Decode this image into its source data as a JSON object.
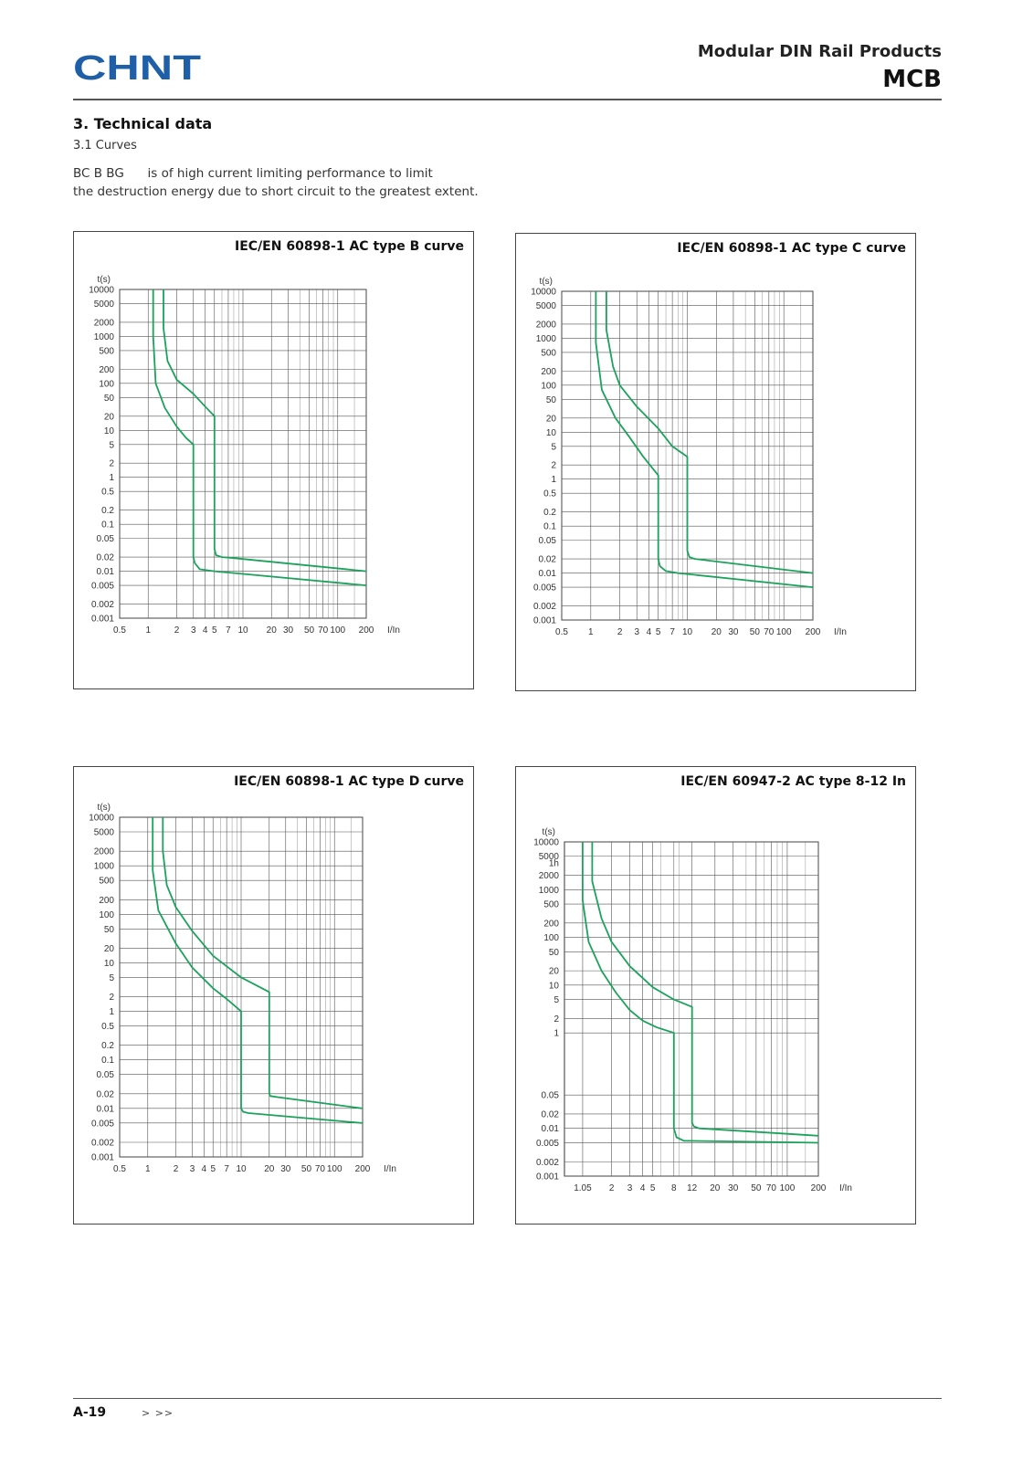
{
  "header": {
    "brand": "CHNT",
    "doc_family": "Modular DIN Rail Products",
    "doc_code": "MCB",
    "brand_color": "#1e5fa8"
  },
  "section": {
    "title": "3. Technical data",
    "subtitle": "3.1 Curves",
    "intro_models": "BC  B  BG",
    "intro_line1": "is of high current limiting performance  to limit",
    "intro_line2": "the destruction energy due to short circuit  to the greatest extent."
  },
  "chart_data": [
    {
      "type": "line",
      "title": "IEC/EN 60898-1 AC type B curve",
      "ylabel": "t(s)",
      "xlabel": "I/In",
      "x_scale": "log",
      "y_scale": "log",
      "xlim": [
        0.5,
        200
      ],
      "ylim": [
        0.001,
        10000
      ],
      "x_ticks": [
        0.5,
        1,
        2,
        3,
        4,
        5,
        7,
        10,
        20,
        30,
        50,
        70,
        100,
        200
      ],
      "y_ticks": [
        10000,
        5000,
        2000,
        1000,
        500,
        200,
        100,
        50,
        20,
        10,
        5,
        2,
        1,
        0.5,
        0.2,
        0.1,
        0.05,
        0.02,
        0.01,
        0.005,
        0.002,
        0.001
      ],
      "grid": true,
      "line_color": "#1aa35a",
      "series": [
        {
          "x": [
            1.13,
            1.13,
            1.2,
            1.5,
            2,
            2.5,
            3,
            3,
            3.1,
            3.5,
            5,
            200
          ],
          "y": [
            10000,
            1000,
            100,
            30,
            12,
            7,
            5,
            0.02,
            0.015,
            0.011,
            0.01,
            0.005
          ]
        },
        {
          "x": [
            1.45,
            1.45,
            1.6,
            2,
            3,
            4,
            5,
            5,
            5.2,
            6,
            8,
            200
          ],
          "y": [
            10000,
            1500,
            300,
            120,
            60,
            32,
            20,
            0.03,
            0.022,
            0.02,
            0.019,
            0.01
          ]
        }
      ]
    },
    {
      "type": "line",
      "title": "IEC/EN 60898-1 AC type C curve",
      "ylabel": "t(s)",
      "xlabel": "I/In",
      "x_scale": "log",
      "y_scale": "log",
      "xlim": [
        0.5,
        200
      ],
      "ylim": [
        0.001,
        10000
      ],
      "x_ticks": [
        0.5,
        1,
        2,
        3,
        4,
        5,
        7,
        10,
        20,
        30,
        50,
        70,
        100,
        200
      ],
      "y_ticks": [
        10000,
        5000,
        2000,
        1000,
        500,
        200,
        100,
        50,
        20,
        10,
        5,
        2,
        1,
        0.5,
        0.2,
        0.1,
        0.05,
        0.02,
        0.01,
        0.005,
        0.002,
        0.001
      ],
      "grid": true,
      "line_color": "#1aa35a",
      "series": [
        {
          "x": [
            1.13,
            1.13,
            1.3,
            1.8,
            2.5,
            3.5,
            5,
            5,
            5.2,
            6,
            8,
            200
          ],
          "y": [
            10000,
            800,
            80,
            20,
            8,
            3,
            1.2,
            0.02,
            0.014,
            0.011,
            0.01,
            0.005
          ]
        },
        {
          "x": [
            1.45,
            1.45,
            1.7,
            2,
            3,
            5,
            7,
            10,
            10,
            10.5,
            12,
            200
          ],
          "y": [
            10000,
            1500,
            250,
            100,
            35,
            12,
            5,
            3,
            0.03,
            0.022,
            0.02,
            0.01
          ]
        }
      ]
    },
    {
      "type": "line",
      "title": "IEC/EN 60898-1 AC type D curve",
      "ylabel": "t(s)",
      "xlabel": "I/In",
      "x_scale": "log",
      "y_scale": "log",
      "xlim": [
        0.5,
        200
      ],
      "ylim": [
        0.001,
        10000
      ],
      "x_ticks": [
        0.5,
        1,
        2,
        3,
        4,
        5,
        7,
        10,
        20,
        30,
        50,
        70,
        100,
        200
      ],
      "y_ticks": [
        10000,
        5000,
        2000,
        1000,
        500,
        200,
        100,
        50,
        20,
        10,
        5,
        2,
        1,
        0.5,
        0.2,
        0.1,
        0.05,
        0.02,
        0.01,
        0.005,
        0.002,
        0.001
      ],
      "grid": true,
      "line_color": "#1aa35a",
      "series": [
        {
          "x": [
            1.13,
            1.13,
            1.3,
            2,
            3,
            5,
            7,
            10,
            10,
            10.5,
            12,
            200
          ],
          "y": [
            10000,
            800,
            120,
            25,
            8,
            3,
            1.8,
            1,
            0.01,
            0.0085,
            0.008,
            0.005
          ]
        },
        {
          "x": [
            1.45,
            1.45,
            1.6,
            2,
            3,
            5,
            10,
            20,
            20,
            20.5,
            25,
            200
          ],
          "y": [
            10000,
            2000,
            400,
            140,
            45,
            14,
            5,
            2.5,
            0.02,
            0.018,
            0.017,
            0.01
          ]
        }
      ]
    },
    {
      "type": "line",
      "title": "IEC/EN 60947-2 AC type 8-12 In",
      "ylabel": "t(s)",
      "xlabel": "I/In",
      "x_scale": "log",
      "y_scale": "log",
      "xlim": [
        0.7,
        200
      ],
      "ylim": [
        0.001,
        10000
      ],
      "x_ticks": [
        1.05,
        2,
        3,
        4,
        5,
        8,
        12,
        20,
        30,
        50,
        70,
        100,
        200
      ],
      "y_ticks": [
        10000,
        5000,
        "1h",
        2000,
        1000,
        500,
        200,
        100,
        50,
        20,
        10,
        5,
        2,
        1,
        0.05,
        0.02,
        0.01,
        0.005,
        0.002,
        0.001
      ],
      "grid": true,
      "line_color": "#1aa35a",
      "series": [
        {
          "x": [
            1.05,
            1.05,
            1.2,
            1.6,
            2.2,
            3,
            4,
            5.5,
            8,
            8,
            8.5,
            10,
            200
          ],
          "y": [
            10000,
            600,
            80,
            20,
            7,
            3,
            1.8,
            1.3,
            1,
            0.01,
            0.0065,
            0.0055,
            0.005
          ]
        },
        {
          "x": [
            1.3,
            1.3,
            1.6,
            2,
            3,
            5,
            8,
            12,
            12,
            12.5,
            14,
            200
          ],
          "y": [
            10000,
            1500,
            250,
            80,
            25,
            9,
            5,
            3.5,
            0.013,
            0.011,
            0.01,
            0.007
          ]
        }
      ]
    }
  ],
  "footer": {
    "page_number": "A-19",
    "nav": ">  >>"
  }
}
